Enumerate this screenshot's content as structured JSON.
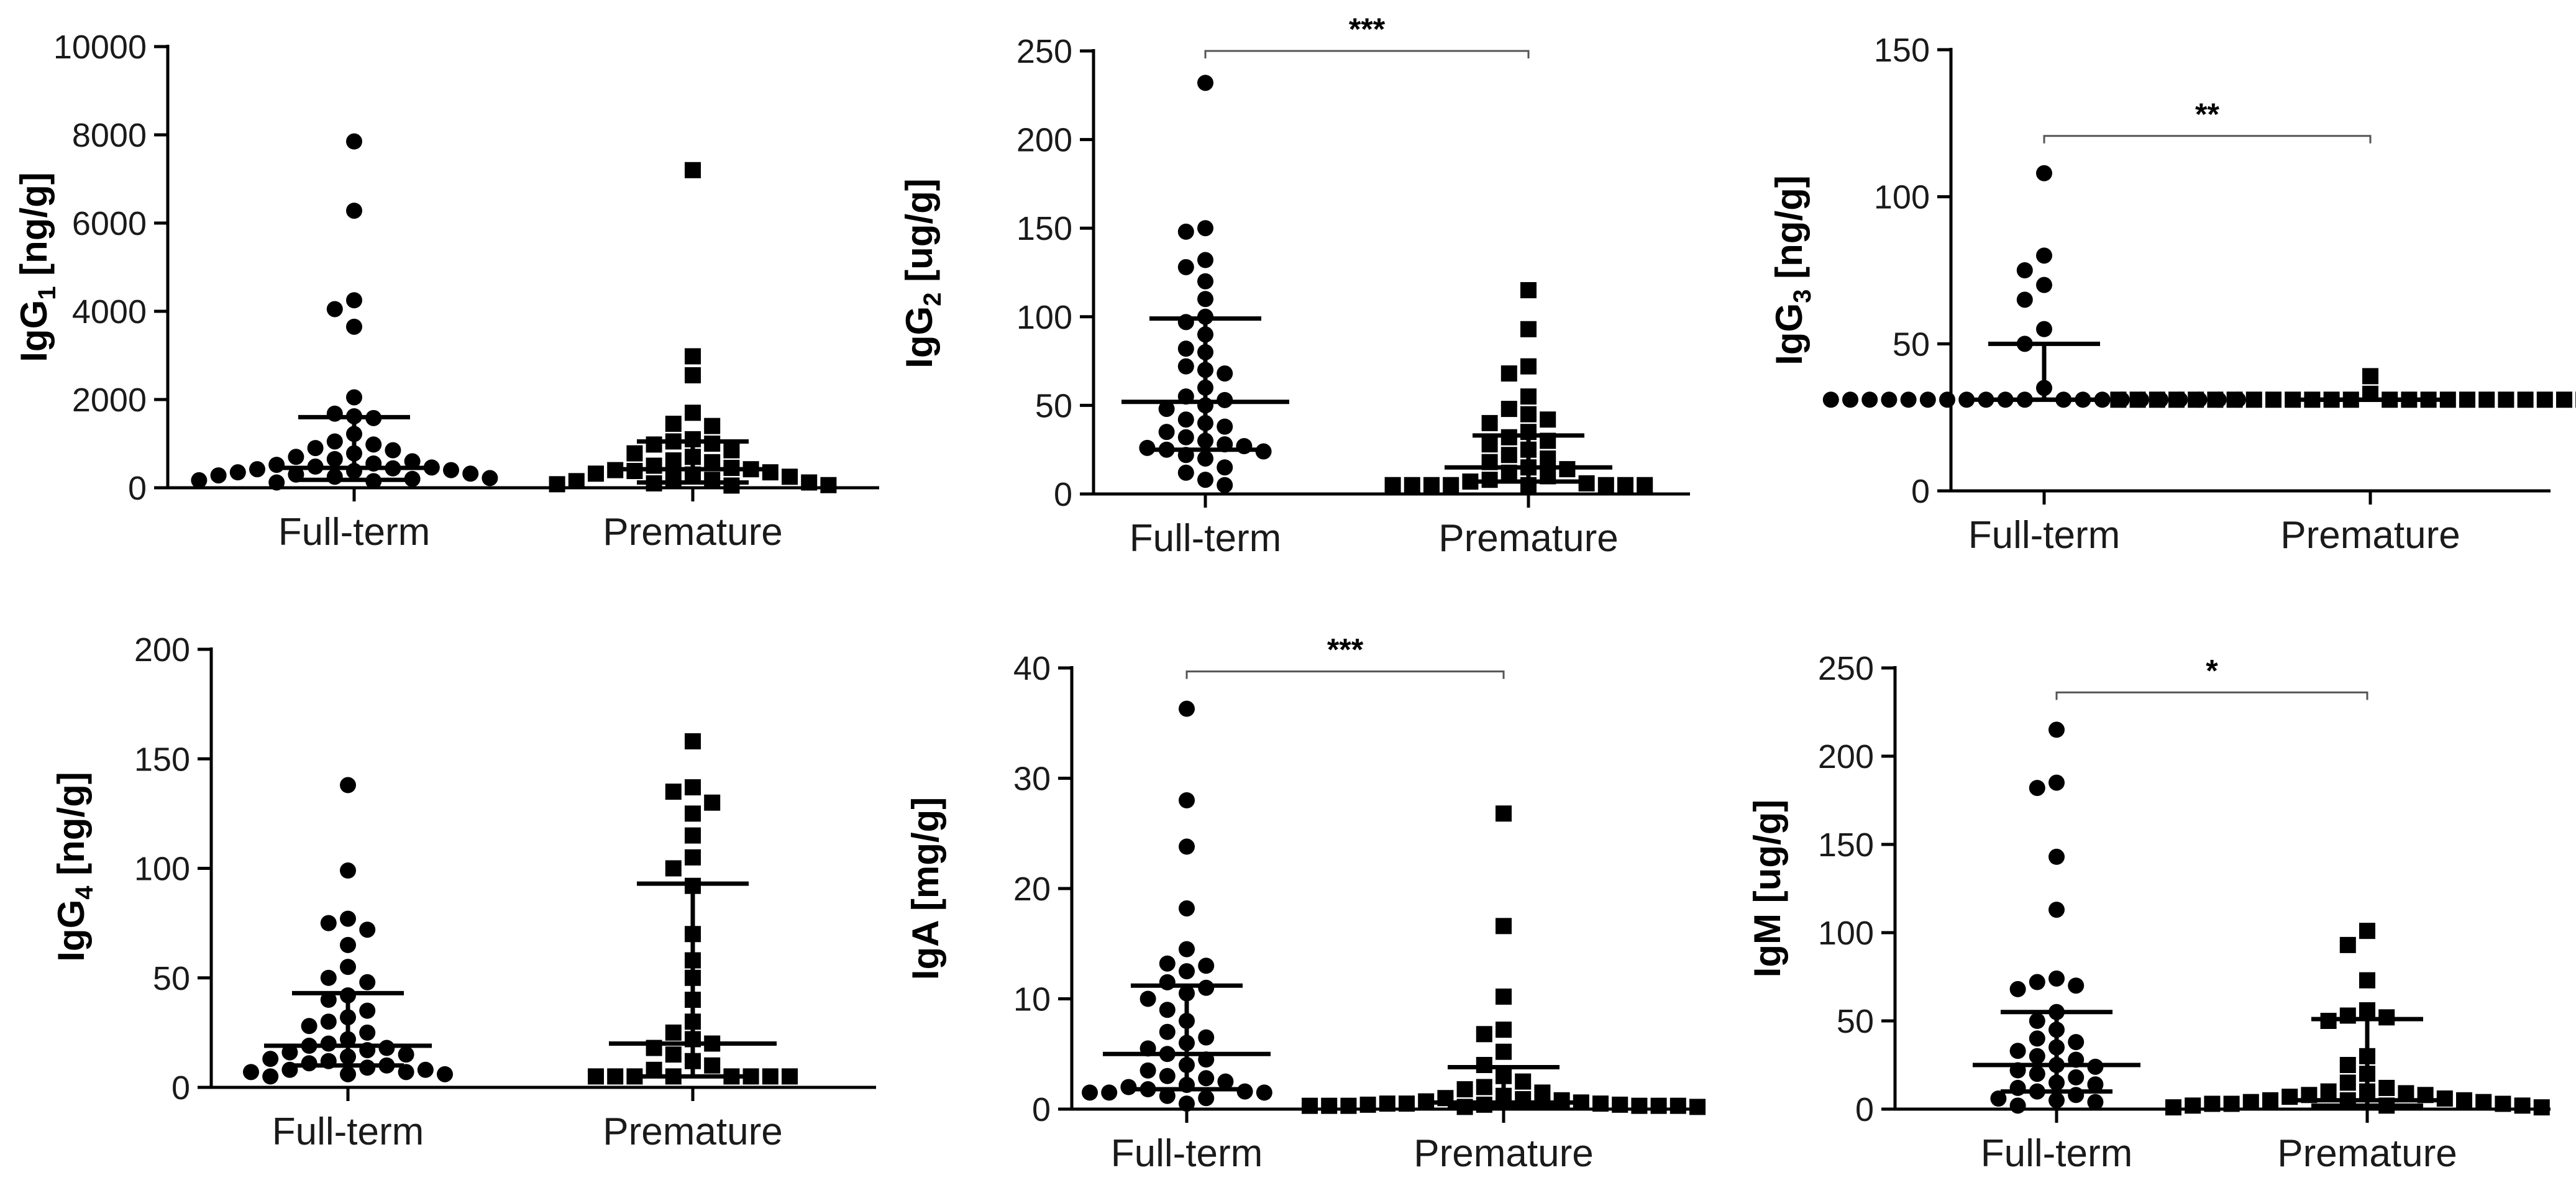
{
  "chart_data": [
    {
      "type": "scatter",
      "id": "igg1",
      "title": "",
      "ylabel": {
        "main": "IgG",
        "subscript": "1",
        "unit": "[ng/g]"
      },
      "ylim": [
        0,
        10000
      ],
      "yticks": [
        0,
        2000,
        4000,
        6000,
        8000,
        10000
      ],
      "categories": [
        "Full-term",
        "Premature"
      ],
      "significance": null,
      "series": [
        {
          "name": "Full-term",
          "marker": "circle",
          "median": 450,
          "q1": 180,
          "q3": 1600,
          "values": [
            7850,
            6280,
            4250,
            4050,
            3650,
            2050,
            1680,
            1620,
            1580,
            1220,
            1050,
            980,
            900,
            850,
            780,
            700,
            650,
            600,
            550,
            520,
            480,
            460,
            440,
            420,
            400,
            380,
            350,
            320,
            300,
            280,
            250,
            220,
            200,
            170,
            150,
            120
          ]
        },
        {
          "name": "Premature",
          "marker": "square",
          "median": 420,
          "q1": 120,
          "q3": 1050,
          "values": [
            7200,
            2980,
            2550,
            1700,
            1450,
            1400,
            1100,
            1050,
            1000,
            980,
            850,
            780,
            700,
            620,
            580,
            500,
            450,
            420,
            400,
            380,
            350,
            320,
            300,
            250,
            200,
            180,
            150,
            120,
            100,
            80,
            60,
            50
          ]
        }
      ]
    },
    {
      "type": "scatter",
      "id": "igg2",
      "title": "",
      "ylabel": {
        "main": "IgG",
        "subscript": "2",
        "unit": "[ug/g]"
      },
      "ylim": [
        0,
        250
      ],
      "yticks": [
        0,
        50,
        100,
        150,
        200,
        250
      ],
      "categories": [
        "Full-term",
        "Premature"
      ],
      "significance": "***",
      "series": [
        {
          "name": "Full-term",
          "marker": "circle",
          "median": 52,
          "q1": 25,
          "q3": 99,
          "values": [
            232,
            150,
            148,
            132,
            128,
            120,
            110,
            100,
            97,
            90,
            82,
            80,
            72,
            70,
            68,
            60,
            55,
            53,
            50,
            48,
            42,
            40,
            38,
            35,
            32,
            30,
            28,
            27,
            26,
            25,
            24,
            22,
            20,
            15,
            12,
            8,
            5
          ]
        },
        {
          "name": "Premature",
          "marker": "square",
          "median": 15,
          "q1": 7,
          "q3": 33,
          "values": [
            115,
            93,
            72,
            68,
            55,
            48,
            45,
            42,
            40,
            35,
            32,
            30,
            28,
            25,
            22,
            20,
            18,
            15,
            14,
            12,
            10,
            8,
            7,
            6,
            5,
            5,
            5,
            5,
            5,
            5,
            5,
            5
          ]
        }
      ]
    },
    {
      "type": "scatter",
      "id": "igg3",
      "title": "",
      "ylabel": {
        "main": "IgG",
        "subscript": "3",
        "unit": "[ng/g]"
      },
      "ylim": [
        0,
        150
      ],
      "yticks": [
        0,
        50,
        100,
        150
      ],
      "categories": [
        "Full-term",
        "Premature"
      ],
      "significance": "**",
      "series": [
        {
          "name": "Full-term",
          "marker": "circle",
          "median": 31,
          "q1": 31,
          "q3": 50,
          "values": [
            108,
            80,
            75,
            70,
            65,
            55,
            50,
            35,
            31,
            31,
            31,
            31,
            31,
            31,
            31,
            31,
            31,
            31,
            31,
            31,
            31,
            31,
            31,
            31,
            31,
            31,
            31,
            31,
            31
          ]
        },
        {
          "name": "Premature",
          "marker": "square",
          "median": 31,
          "q1": 31,
          "q3": 31,
          "values": [
            39,
            33,
            31,
            31,
            31,
            31,
            31,
            31,
            31,
            31,
            31,
            31,
            31,
            31,
            31,
            31,
            31,
            31,
            31,
            31,
            31,
            31,
            31,
            31,
            31,
            31,
            31,
            31
          ]
        }
      ]
    },
    {
      "type": "scatter",
      "id": "igg4",
      "title": "",
      "ylabel": {
        "main": "IgG",
        "subscript": "4",
        "unit": "[ng/g]"
      },
      "ylim": [
        0,
        200
      ],
      "yticks": [
        0,
        50,
        100,
        150,
        200
      ],
      "categories": [
        "Full-term",
        "Premature"
      ],
      "significance": null,
      "series": [
        {
          "name": "Full-term",
          "marker": "circle",
          "median": 19,
          "q1": 10,
          "q3": 43,
          "values": [
            138,
            99,
            77,
            75,
            72,
            65,
            55,
            50,
            48,
            42,
            40,
            35,
            32,
            30,
            28,
            25,
            22,
            20,
            19,
            18,
            17,
            16,
            15,
            14,
            13,
            12,
            11,
            10,
            9,
            8,
            8,
            7,
            7,
            6,
            6,
            5
          ]
        },
        {
          "name": "Premature",
          "marker": "square",
          "median": 20,
          "q1": 5,
          "q3": 93,
          "values": [
            158,
            137,
            135,
            130,
            125,
            115,
            105,
            100,
            92,
            70,
            58,
            50,
            40,
            30,
            25,
            22,
            20,
            18,
            15,
            12,
            10,
            8,
            5,
            5,
            5,
            5,
            5,
            5,
            5,
            5
          ]
        }
      ]
    },
    {
      "type": "scatter",
      "id": "iga",
      "title": "",
      "ylabel": {
        "main": "IgA",
        "subscript": "",
        "unit": "[mg/g]"
      },
      "ylim": [
        0,
        40
      ],
      "yticks": [
        0,
        10,
        20,
        30,
        40
      ],
      "categories": [
        "Full-term",
        "Premature"
      ],
      "significance": "***",
      "series": [
        {
          "name": "Full-term",
          "marker": "circle",
          "median": 5,
          "q1": 1.8,
          "q3": 11.2,
          "values": [
            36.3,
            28,
            23.8,
            18.2,
            14.5,
            13.2,
            13,
            12.5,
            11.5,
            11,
            10.5,
            10,
            9,
            8,
            7,
            6.5,
            6,
            5.5,
            5,
            4.5,
            4,
            3.5,
            3,
            2.8,
            2.5,
            2.2,
            2,
            1.8,
            1.6,
            1.5,
            1.5,
            1.5,
            1.2,
            1,
            0.5
          ]
        },
        {
          "name": "Premature",
          "marker": "square",
          "median": 0.6,
          "q1": 0.3,
          "q3": 3.8,
          "values": [
            26.8,
            16.6,
            10.2,
            7.2,
            6.8,
            5.2,
            4,
            3,
            2.5,
            2,
            1.8,
            1.5,
            1.2,
            1,
            0.9,
            0.8,
            0.7,
            0.6,
            0.5,
            0.5,
            0.5,
            0.4,
            0.4,
            0.4,
            0.3,
            0.3,
            0.3,
            0.3,
            0.3,
            0.3,
            0.2,
            0.2
          ]
        }
      ]
    },
    {
      "type": "scatter",
      "id": "igm",
      "title": "",
      "ylabel": {
        "main": "IgM",
        "subscript": "",
        "unit": "[ug/g]"
      },
      "ylim": [
        0,
        250
      ],
      "yticks": [
        0,
        50,
        100,
        150,
        200,
        250
      ],
      "categories": [
        "Full-term",
        "Premature"
      ],
      "significance": "*",
      "series": [
        {
          "name": "Full-term",
          "marker": "circle",
          "median": 25,
          "q1": 10,
          "q3": 55,
          "values": [
            215,
            185,
            182,
            143,
            113,
            74,
            72,
            70,
            68,
            55,
            50,
            45,
            40,
            38,
            35,
            33,
            30,
            28,
            25,
            24,
            22,
            20,
            18,
            15,
            14,
            12,
            10,
            8,
            6,
            5,
            4,
            2
          ]
        },
        {
          "name": "Premature",
          "marker": "square",
          "median": 5,
          "q1": 2,
          "q3": 51,
          "values": [
            101,
            93,
            73,
            56,
            53,
            52,
            50,
            30,
            25,
            20,
            15,
            12,
            10,
            10,
            9,
            8,
            8,
            7,
            6,
            5,
            5,
            5,
            4,
            4,
            3,
            3,
            3,
            2,
            2,
            2,
            1,
            1
          ]
        }
      ]
    }
  ]
}
